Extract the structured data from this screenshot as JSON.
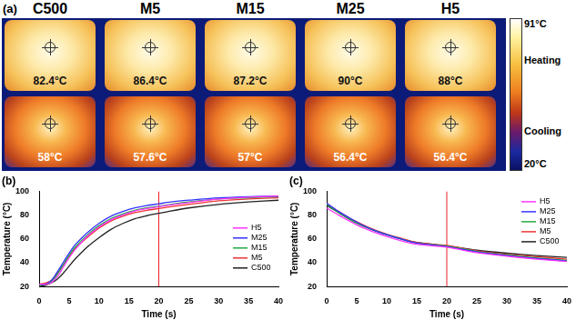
{
  "panel_a": {
    "label": "(a)",
    "samples": [
      "C500",
      "M5",
      "M15",
      "M25",
      "H5"
    ],
    "heating": [
      "82.4°C",
      "86.4°C",
      "87.2°C",
      "90°C",
      "88°C"
    ],
    "cooling": [
      "58°C",
      "57.6°C",
      "57°C",
      "56.4°C",
      "56.4°C"
    ],
    "colorbar": {
      "max": "91°C",
      "upper": "Heating",
      "lower": "Cooling",
      "min": "20°C"
    }
  },
  "chart_data": [
    {
      "type": "line",
      "title": "(b)",
      "x_label": "Time (s)",
      "y_label": "Temperature (°C)",
      "x": [
        0,
        1,
        2,
        3,
        4,
        5,
        6,
        8,
        10,
        12,
        14,
        16,
        18,
        20,
        22,
        25,
        30,
        35,
        40
      ],
      "series": [
        {
          "name": "H5",
          "color": "#ff33ff",
          "values": [
            22,
            22,
            23,
            28,
            36,
            44,
            51,
            62,
            70,
            76,
            80,
            83.5,
            85.5,
            87,
            88.5,
            90.5,
            93.5,
            95,
            96
          ]
        },
        {
          "name": "M25",
          "color": "#3333ff",
          "values": [
            22,
            22,
            25,
            32,
            40,
            48,
            55,
            65,
            73,
            79,
            83,
            86,
            88,
            89.5,
            91,
            92.5,
            94.5,
            95.5,
            96
          ]
        },
        {
          "name": "M15",
          "color": "#22aa44",
          "values": [
            21,
            22,
            24,
            30,
            38,
            46,
            53,
            63,
            71,
            77,
            81,
            84,
            86,
            87.5,
            89,
            91,
            93.5,
            94.5,
            95.5
          ]
        },
        {
          "name": "M5",
          "color": "#ee3333",
          "values": [
            22,
            23,
            25,
            31,
            38,
            45,
            52,
            61,
            69,
            75,
            79,
            82,
            84,
            85.5,
            87,
            89,
            92,
            93.5,
            94.5
          ]
        },
        {
          "name": "C500",
          "color": "#222222",
          "values": [
            20,
            21,
            23,
            26,
            31,
            37,
            43,
            53,
            61,
            68,
            73,
            77,
            79.5,
            81.5,
            83.5,
            86,
            89,
            91,
            92.5
          ]
        }
      ],
      "xlim": [
        0,
        40
      ],
      "xticks": [
        0,
        5,
        10,
        15,
        20,
        25,
        30,
        35,
        40
      ],
      "ylim": [
        20,
        100
      ],
      "yticks": [
        20,
        40,
        60,
        80,
        100
      ],
      "grid": false,
      "legend": "center right",
      "reference_line": {
        "x": 20,
        "color": "#e8202a"
      }
    },
    {
      "type": "line",
      "title": "(c)",
      "x_label": "Time (s)",
      "y_label": "Temperature (°C)",
      "x": [
        0,
        2,
        4,
        6,
        8,
        10,
        12,
        15,
        20,
        25,
        30,
        35,
        40
      ],
      "series": [
        {
          "name": "H5",
          "color": "#ff33ff",
          "values": [
            86,
            80,
            74.5,
            69.5,
            65.5,
            62,
            59,
            55.5,
            53,
            48.5,
            45.5,
            43,
            41
          ]
        },
        {
          "name": "M25",
          "color": "#3333ff",
          "values": [
            90,
            83,
            77,
            71.5,
            67,
            63.5,
            60.5,
            56.5,
            53.5,
            49,
            46,
            43.5,
            41.5
          ]
        },
        {
          "name": "M15",
          "color": "#22aa44",
          "values": [
            89,
            82,
            76,
            71,
            67,
            63.5,
            60.5,
            56.5,
            54,
            49.5,
            46.5,
            44,
            42
          ]
        },
        {
          "name": "M5",
          "color": "#ee3333",
          "values": [
            90,
            83,
            77,
            72,
            67.5,
            64,
            61,
            57,
            54.5,
            50,
            47,
            45,
            43
          ]
        },
        {
          "name": "C500",
          "color": "#222222",
          "values": [
            88,
            82,
            76,
            71,
            67,
            63.5,
            60.5,
            57,
            54,
            50.5,
            48,
            46,
            44.5
          ]
        }
      ],
      "xlim": [
        0,
        40
      ],
      "xticks": [
        0,
        5,
        10,
        15,
        20,
        25,
        30,
        35,
        40
      ],
      "ylim": [
        20,
        100
      ],
      "yticks": [
        20,
        40,
        60,
        80,
        100
      ],
      "grid": false,
      "legend": "upper right",
      "reference_line": {
        "x": 20,
        "color": "#e8202a"
      }
    }
  ]
}
